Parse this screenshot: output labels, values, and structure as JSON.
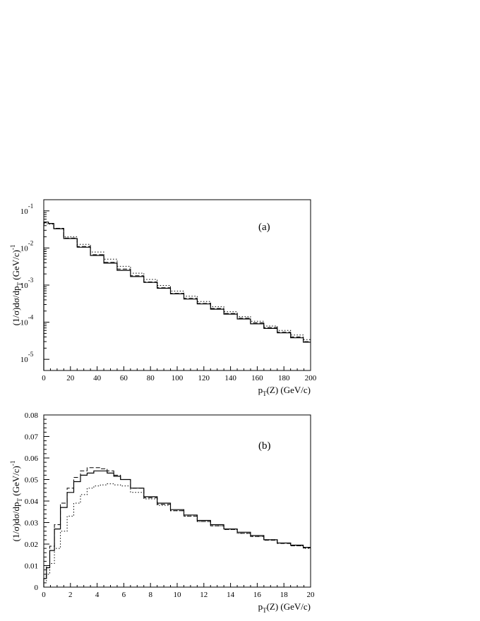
{
  "chart_data": [
    {
      "type": "line",
      "panel_label": "(a)",
      "ylabel": "(1/σ)dσ/dp_T (GeV/c)^-1",
      "xlabel": "p_T(Z) (GeV/c)",
      "xlim": [
        0,
        200
      ],
      "ylim": [
        5e-06,
        0.2
      ],
      "y_scale": "log",
      "x_ticks": [
        "0",
        "20",
        "40",
        "60",
        "80",
        "100",
        "120",
        "140",
        "160",
        "180",
        "200"
      ],
      "y_ticks": [
        {
          "base": "10",
          "exp": "-1"
        },
        {
          "base": "10",
          "exp": "-2"
        },
        {
          "base": "10",
          "exp": "-3"
        },
        {
          "base": "10",
          "exp": "-4"
        },
        {
          "base": "10",
          "exp": "-5"
        }
      ],
      "grid": false,
      "series": [
        {
          "style": "solid",
          "x": [
            2,
            5,
            10,
            20,
            30,
            40,
            50,
            60,
            70,
            80,
            90,
            100,
            110,
            120,
            130,
            140,
            150,
            160,
            170,
            180,
            190,
            199
          ],
          "y": [
            0.05,
            0.046,
            0.033,
            0.018,
            0.0105,
            0.0063,
            0.0039,
            0.0025,
            0.0017,
            0.00118,
            0.00082,
            0.00058,
            0.00042,
            0.00031,
            0.000225,
            0.000165,
            0.000122,
            9.05e-05,
            6.8e-05,
            5.15e-05,
            3.8e-05,
            2.9e-05
          ]
        },
        {
          "style": "dashed",
          "x": [
            2,
            5,
            10,
            20,
            30,
            40,
            50,
            60,
            70,
            80,
            90,
            100,
            110,
            120,
            130,
            140,
            150,
            160,
            170,
            180,
            190,
            199
          ],
          "y": [
            0.048,
            0.046,
            0.034,
            0.0185,
            0.011,
            0.0066,
            0.0041,
            0.0027,
            0.00178,
            0.00122,
            0.00085,
            0.0006,
            0.00044,
            0.00032,
            0.000235,
            0.000172,
            0.000128,
            9.6e-05,
            7.2e-05,
            5.4e-05,
            4e-05,
            3e-05
          ]
        },
        {
          "style": "dotted",
          "x": [
            2,
            5,
            10,
            20,
            30,
            40,
            50,
            60,
            70,
            80,
            90,
            100,
            110,
            120,
            130,
            140,
            150,
            160,
            170,
            180,
            190,
            199
          ],
          "y": [
            0.045,
            0.044,
            0.034,
            0.02,
            0.0125,
            0.0078,
            0.005,
            0.0032,
            0.0021,
            0.00142,
            0.00098,
            0.00069,
            0.0005,
            0.00036,
            0.000262,
            0.000192,
            0.000142,
            0.000106,
            7.9e-05,
            6e-05,
            4.5e-05,
            3.4e-05
          ]
        }
      ]
    },
    {
      "type": "line",
      "panel_label": "(b)",
      "ylabel": "(1/σ)dσ/dp_T (GeV/c)^-1",
      "xlabel": "p_T(Z) (GeV/c)",
      "xlim": [
        0,
        20
      ],
      "ylim": [
        0,
        0.08
      ],
      "y_scale": "linear",
      "x_ticks": [
        "0",
        "2",
        "4",
        "6",
        "8",
        "10",
        "12",
        "14",
        "16",
        "18",
        "20"
      ],
      "y_ticks": [
        "0",
        "0.01",
        "0.02",
        "0.03",
        "0.04",
        "0.05",
        "0.06",
        "0.07",
        "0.08"
      ],
      "grid": false,
      "series": [
        {
          "style": "solid",
          "x": [
            0.1,
            0.3,
            0.6,
            1.0,
            1.5,
            2.0,
            2.5,
            3.0,
            3.5,
            4.0,
            4.5,
            5.0,
            5.5,
            6.0,
            7.0,
            8.0,
            9.0,
            10.0,
            11.0,
            12.0,
            13.0,
            14.0,
            15.0,
            16.0,
            17.0,
            18.0,
            19.0,
            19.9
          ],
          "y": [
            0.004,
            0.009,
            0.017,
            0.027,
            0.037,
            0.044,
            0.049,
            0.052,
            0.053,
            0.054,
            0.054,
            0.053,
            0.0515,
            0.05,
            0.046,
            0.042,
            0.039,
            0.036,
            0.0335,
            0.031,
            0.029,
            0.027,
            0.0255,
            0.024,
            0.022,
            0.0205,
            0.0195,
            0.0185
          ]
        },
        {
          "style": "dashed",
          "x": [
            0.1,
            0.3,
            0.6,
            1.0,
            1.5,
            2.0,
            2.5,
            3.0,
            3.5,
            4.0,
            4.5,
            5.0,
            5.5,
            6.0,
            7.0,
            8.0,
            9.0,
            10.0,
            11.0,
            12.0,
            13.0,
            14.0,
            15.0,
            16.0,
            17.0,
            18.0,
            19.0,
            19.9
          ],
          "y": [
            0.005,
            0.01,
            0.019,
            0.029,
            0.039,
            0.046,
            0.051,
            0.054,
            0.0555,
            0.0555,
            0.055,
            0.054,
            0.052,
            0.05,
            0.046,
            0.0415,
            0.0385,
            0.0355,
            0.033,
            0.0305,
            0.0285,
            0.0268,
            0.025,
            0.0235,
            0.0218,
            0.0203,
            0.0192,
            0.0182
          ]
        },
        {
          "style": "dotted",
          "x": [
            0.1,
            0.3,
            0.6,
            1.0,
            1.5,
            2.0,
            2.5,
            3.0,
            3.5,
            4.0,
            4.5,
            5.0,
            5.5,
            6.0,
            7.0,
            8.0,
            9.0,
            10.0,
            11.0,
            12.0,
            13.0,
            14.0,
            15.0,
            16.0,
            17.0,
            18.0,
            19.0,
            19.9
          ],
          "y": [
            0.003,
            0.006,
            0.011,
            0.018,
            0.026,
            0.033,
            0.039,
            0.043,
            0.046,
            0.047,
            0.0475,
            0.048,
            0.0475,
            0.047,
            0.044,
            0.041,
            0.038,
            0.0355,
            0.033,
            0.0305,
            0.0285,
            0.0268,
            0.025,
            0.0235,
            0.022,
            0.0205,
            0.0192,
            0.018
          ]
        }
      ]
    }
  ]
}
